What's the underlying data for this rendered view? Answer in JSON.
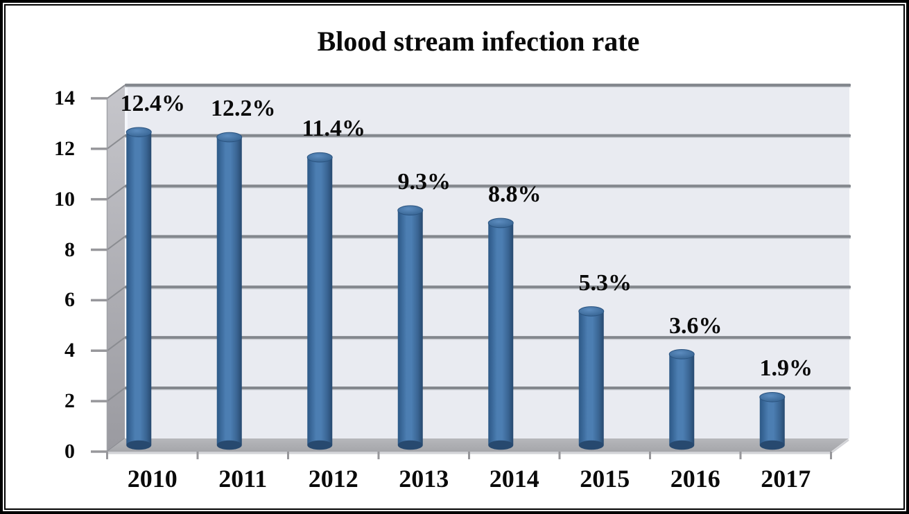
{
  "title": "Blood stream infection rate",
  "colors": {
    "bar_edge_dark": "#2E5A87",
    "bar_highlight": "#4C7EB2",
    "bar_shadow": "#27496F",
    "bar_cap_light": "#5C8CBF",
    "bar_cap_dark": "#34618F",
    "back_wall": "#E9EBF1",
    "back_wall_edge": "#F4F6FB",
    "side_wall_light": "#C6C6CB",
    "side_wall_dark": "#9A9AA0",
    "floor_light": "#B6B7BB",
    "floor_dark": "#A5A6AA",
    "floor_front_edge": "#D2D3D7",
    "gridline": "#83878D",
    "gridline_highlight": "#C9CDD3",
    "step_line": "#8A8C91",
    "tick": "#97979B",
    "text": "#0A0A0A",
    "frame_border": "#000000"
  },
  "chart_data": {
    "type": "bar",
    "subtype": "3d-cylinder",
    "title": "Blood stream infection rate",
    "categories": [
      "2010",
      "2011",
      "2012",
      "2013",
      "2014",
      "2015",
      "2016",
      "2017"
    ],
    "values": [
      12.4,
      12.2,
      11.4,
      9.3,
      8.8,
      5.3,
      3.6,
      1.9
    ],
    "data_labels": [
      "12.4%",
      "12.2%",
      "11.4%",
      "9.3%",
      "8.8%",
      "5.3%",
      "3.6%",
      "1.9%"
    ],
    "xlabel": "",
    "ylabel": "",
    "ylim": [
      0,
      14
    ],
    "yticks": [
      0,
      2,
      4,
      6,
      8,
      10,
      12,
      14
    ],
    "ytick_labels": [
      "0",
      "2",
      "4",
      "6",
      "8",
      "10",
      "12",
      "14"
    ],
    "grid": true,
    "legend": false,
    "series_name": "Blood stream infection rate"
  }
}
